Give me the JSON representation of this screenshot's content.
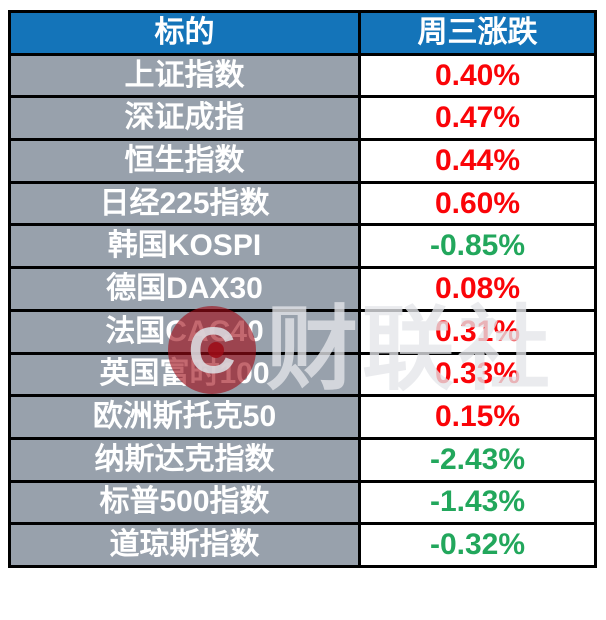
{
  "table": {
    "columns": [
      {
        "label": "标的"
      },
      {
        "label": "周三涨跌"
      }
    ],
    "rows": [
      {
        "name": "上证指数",
        "change": "0.40%"
      },
      {
        "name": "深证成指",
        "change": "0.47%"
      },
      {
        "name": "恒生指数",
        "change": "0.44%"
      },
      {
        "name": "日经225指数",
        "change": "0.60%"
      },
      {
        "name": "韩国KOSPI",
        "change": "-0.85%"
      },
      {
        "name": "德国DAX30",
        "change": "0.08%"
      },
      {
        "name": "法国CAC40",
        "change": "0.31%"
      },
      {
        "name": "英国富时100",
        "change": "0.33%"
      },
      {
        "name": "欧洲斯托克50",
        "change": "0.15%"
      },
      {
        "name": "纳斯达克指数",
        "change": "-2.43%"
      },
      {
        "name": "标普500指数",
        "change": "-1.43%"
      },
      {
        "name": "道琼斯指数",
        "change": "-0.32%"
      }
    ]
  },
  "watermark": {
    "logo_letter": "C",
    "text": "财联社"
  },
  "colors": {
    "header_bg": "#1474b9",
    "row_label_bg": "#98a1ac",
    "up_color": "#fa0408",
    "down_color": "#22a75c",
    "border": "#000000",
    "page_bg": "#ffffff"
  },
  "chart_data": {
    "type": "table",
    "title": "",
    "columns": [
      "标的",
      "周三涨跌"
    ],
    "rows": [
      [
        "上证指数",
        "0.40%"
      ],
      [
        "深证成指",
        "0.47%"
      ],
      [
        "恒生指数",
        "0.44%"
      ],
      [
        "日经225指数",
        "0.60%"
      ],
      [
        "韩国KOSPI",
        "-0.85%"
      ],
      [
        "德国DAX30",
        "0.08%"
      ],
      [
        "法国CAC40",
        "0.31%"
      ],
      [
        "英国富时100",
        "0.33%"
      ],
      [
        "欧洲斯托克50",
        "0.15%"
      ],
      [
        "纳斯达克指数",
        "-2.43%"
      ],
      [
        "标普500指数",
        "-1.43%"
      ],
      [
        "道琼斯指数",
        "-0.32%"
      ]
    ],
    "values_numeric": [
      0.4,
      0.47,
      0.44,
      0.6,
      -0.85,
      0.08,
      0.31,
      0.33,
      0.15,
      -2.43,
      -1.43,
      -0.32
    ],
    "value_unit": "%",
    "positive_color": "#fa0408",
    "negative_color": "#22a75c",
    "notes": "red = gain (Chinese convention), green = loss"
  }
}
